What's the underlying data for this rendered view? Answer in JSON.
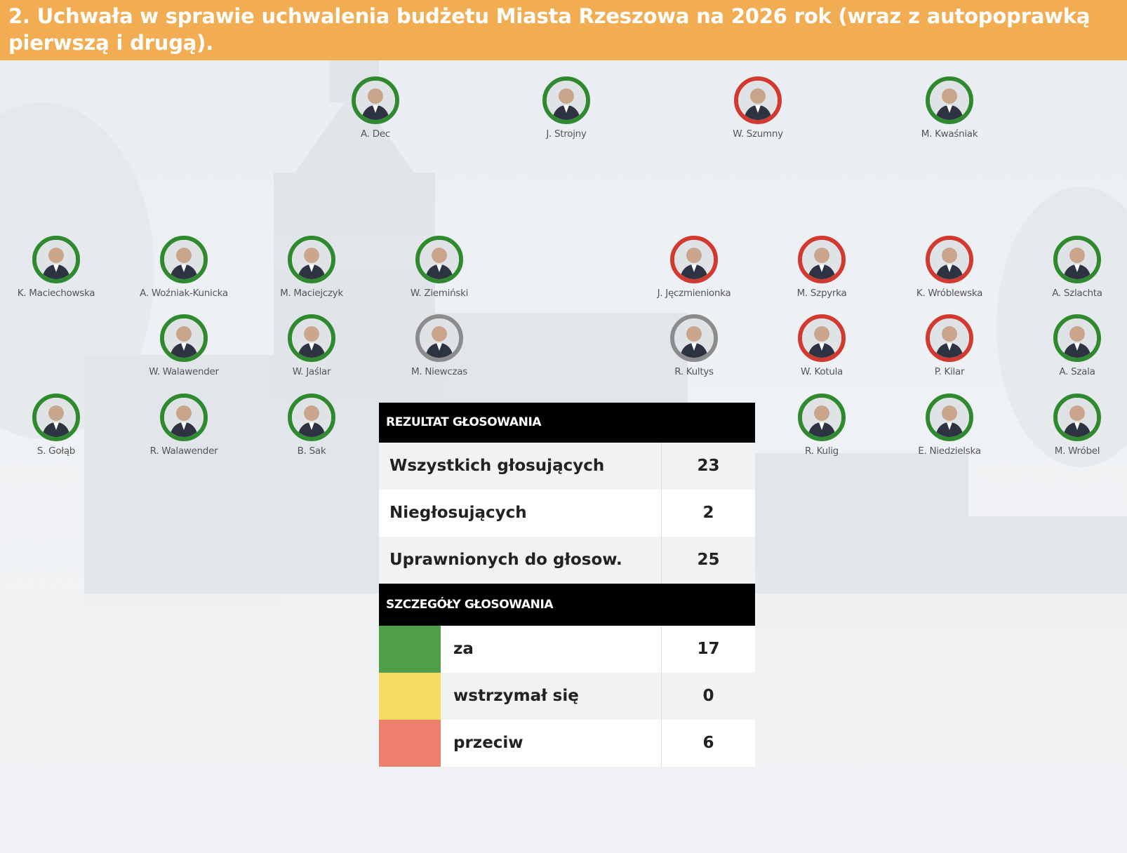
{
  "title": "2. Uchwała w sprawie uchwalenia budżetu Miasta Rzeszowa na 2026 rok (wraz z autopoprawką pierwszą i drugą).",
  "colors": {
    "za": "#4f9e4a",
    "wstrzymal": "#f4dc62",
    "przeciw": "#ee7f6d",
    "title_bar": "#f2ad52"
  },
  "councillors": {
    "dec": {
      "name": "A. Dec",
      "vote": "za"
    },
    "strojny": {
      "name": "J. Strojny",
      "vote": "za"
    },
    "szumny": {
      "name": "W. Szumny",
      "vote": "przeciw"
    },
    "kwasniak": {
      "name": "M. Kwaśniak",
      "vote": "za"
    },
    "maciechowska": {
      "name": "K. Maciechowska",
      "vote": "za"
    },
    "wozniak": {
      "name": "A. Woźniak-Kunicka",
      "vote": "za"
    },
    "maciejczyk": {
      "name": "M. Maciejczyk",
      "vote": "za"
    },
    "zieminski": {
      "name": "W. Ziemiński",
      "vote": "za"
    },
    "jeczmienionka": {
      "name": "J. Jęczmienionka",
      "vote": "przeciw"
    },
    "szpyrka": {
      "name": "M. Szpyrka",
      "vote": "przeciw"
    },
    "wroblewska": {
      "name": "K. Wróblewska",
      "vote": "przeciw"
    },
    "szlachta": {
      "name": "A. Szlachta",
      "vote": "za"
    },
    "walawender_w": {
      "name": "W. Walawender",
      "vote": "za"
    },
    "jaslar": {
      "name": "W. Jaślar",
      "vote": "za"
    },
    "niewczas": {
      "name": "M. Niewczas",
      "vote": "nieglosujacy"
    },
    "kultys": {
      "name": "R. Kultys",
      "vote": "nieglosujacy"
    },
    "kotula": {
      "name": "W. Kotula",
      "vote": "przeciw"
    },
    "kilar": {
      "name": "P. Kilar",
      "vote": "przeciw"
    },
    "szala": {
      "name": "A. Szala",
      "vote": "za"
    },
    "golab": {
      "name": "S. Gołąb",
      "vote": "za"
    },
    "walawender_r": {
      "name": "R. Walawender",
      "vote": "za"
    },
    "sak": {
      "name": "B. Sak",
      "vote": "za"
    },
    "kulig": {
      "name": "R. Kulig",
      "vote": "za"
    },
    "niedzielska": {
      "name": "E. Niedzielska",
      "vote": "za"
    },
    "wrobel": {
      "name": "M. Wróbel",
      "vote": "za"
    }
  },
  "results": {
    "header": "REZULTAT GŁOSOWANIA",
    "rows": [
      {
        "label": "Wszystkich głosujących",
        "value": "23"
      },
      {
        "label": "Niegłosujących",
        "value": "2"
      },
      {
        "label": "Uprawnionych do głosow.",
        "value": "25"
      }
    ],
    "details_header": "SZCZEGÓŁY GŁOSOWANIA",
    "details": [
      {
        "label": "za",
        "value": "17"
      },
      {
        "label": "wstrzymał się",
        "value": "0"
      },
      {
        "label": "przeciw",
        "value": "6"
      }
    ]
  }
}
